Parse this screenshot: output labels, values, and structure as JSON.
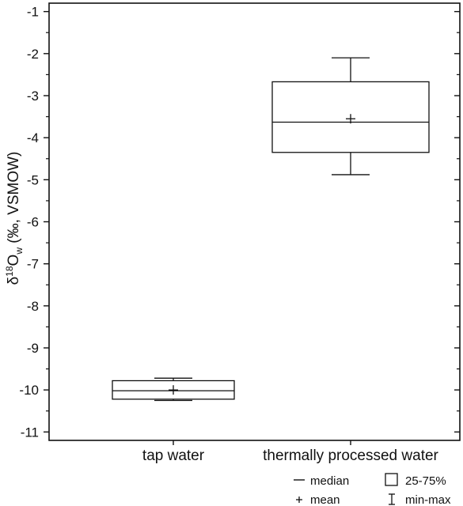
{
  "chart_data": {
    "type": "boxplot",
    "title": "",
    "xlabel": "",
    "ylabel": {
      "prefix": "δ",
      "sup": "18",
      "mid": "O",
      "sub": "w",
      "suffix": " (‰, VSMOW)"
    },
    "ylim": [
      -11.2,
      -0.8
    ],
    "yticks": [
      -1,
      -2,
      -3,
      -4,
      -5,
      -6,
      -7,
      -8,
      -9,
      -10,
      -11
    ],
    "ytick_labels": [
      "-1",
      "-2",
      "-3",
      "-4",
      "-5",
      "-6",
      "-7",
      "-8",
      "-9",
      "-10",
      "-11"
    ],
    "grid": false,
    "categories": [
      "tap water",
      "thermally processed water"
    ],
    "boxes": [
      {
        "category": "tap water",
        "min": -10.25,
        "q1": -10.22,
        "median": -10.02,
        "q3": -9.78,
        "max": -9.72,
        "mean": -10.0
      },
      {
        "category": "thermally processed water",
        "min": -4.88,
        "q1": -4.35,
        "median": -3.63,
        "q3": -2.67,
        "max": -2.1,
        "mean": -3.55
      }
    ],
    "legend": {
      "position": "bottom-right",
      "items": [
        {
          "symbol": "—",
          "label": "median"
        },
        {
          "symbol": "□",
          "label": "25-75%"
        },
        {
          "symbol": "+",
          "label": "mean"
        },
        {
          "symbol": "I",
          "label": "min-max"
        }
      ]
    }
  }
}
